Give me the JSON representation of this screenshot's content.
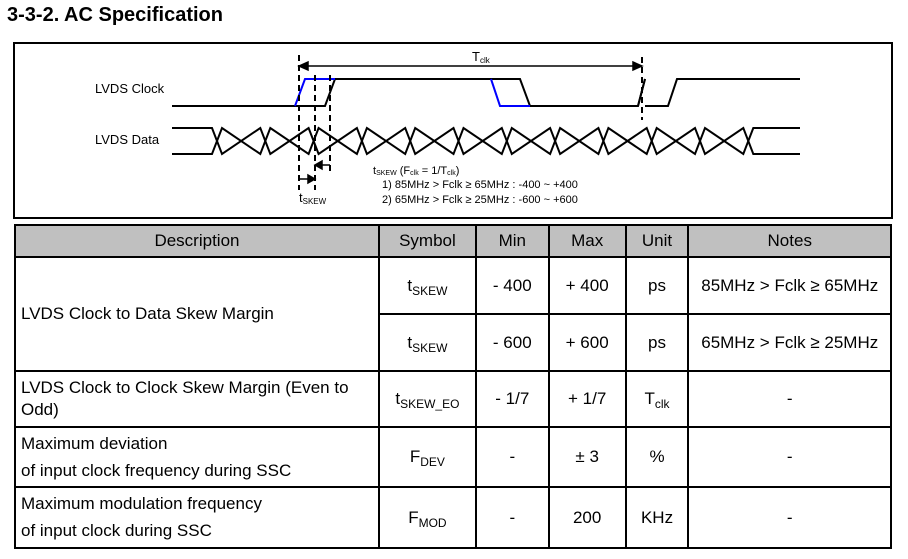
{
  "section_title": "3-3-2. AC Specification",
  "diagram": {
    "clock_label": "LVDS Clock",
    "data_label": "LVDS Data",
    "tclk": {
      "main": "T",
      "sub": "clk"
    },
    "tskew": {
      "main": "t",
      "sub": "SKEW"
    },
    "note_line1": {
      "t": "t",
      "skew": "SKEW",
      "mid": " (F",
      "clk": "clk",
      "eq": " = 1/T",
      "clk2": "clk",
      "end": ")"
    },
    "note_line2": "1) 85MHz > Fclk ≥ 65MHz : -400 ~ +400",
    "note_line3": "2) 65MHz > Fclk ≥ 25MHz : -600 ~ +600",
    "colors": {
      "early_edge": "#0000ff",
      "signal": "#000000"
    }
  },
  "table": {
    "headers": [
      "Description",
      "Symbol",
      "Min",
      "Max",
      "Unit",
      "Notes"
    ],
    "rows": [
      {
        "desc": "LVDS Clock to Data Skew Margin",
        "sym": "t",
        "sym_sub": "SKEW",
        "min": "- 400",
        "max": "+ 400",
        "unit": "ps",
        "unit_sub": "",
        "notes": "85MHz > Fclk ≥ 65MHz"
      },
      {
        "sym": "t",
        "sym_sub": "SKEW",
        "min": "- 600",
        "max": "+ 600",
        "unit": "ps",
        "unit_sub": "",
        "notes": "65MHz > Fclk ≥ 25MHz"
      },
      {
        "desc": "LVDS Clock to Clock Skew Margin (Even to Odd)",
        "sym": "t",
        "sym_sub": "SKEW_EO",
        "min": "- 1/7",
        "max": "+ 1/7",
        "unit": "T",
        "unit_sub": "clk",
        "notes": "-"
      },
      {
        "desc_line1": "Maximum deviation",
        "desc_line2": "of input clock frequency during SSC",
        "sym": "F",
        "sym_sub": "DEV",
        "min": "-",
        "max": "± 3",
        "unit": "%",
        "unit_sub": "",
        "notes": "-"
      },
      {
        "desc_line1": "Maximum modulation frequency",
        "desc_line2": "of input clock during SSC",
        "sym": "F",
        "sym_sub": "MOD",
        "min": "-",
        "max": "200",
        "unit": "KHz",
        "unit_sub": "",
        "notes": "-"
      }
    ]
  }
}
